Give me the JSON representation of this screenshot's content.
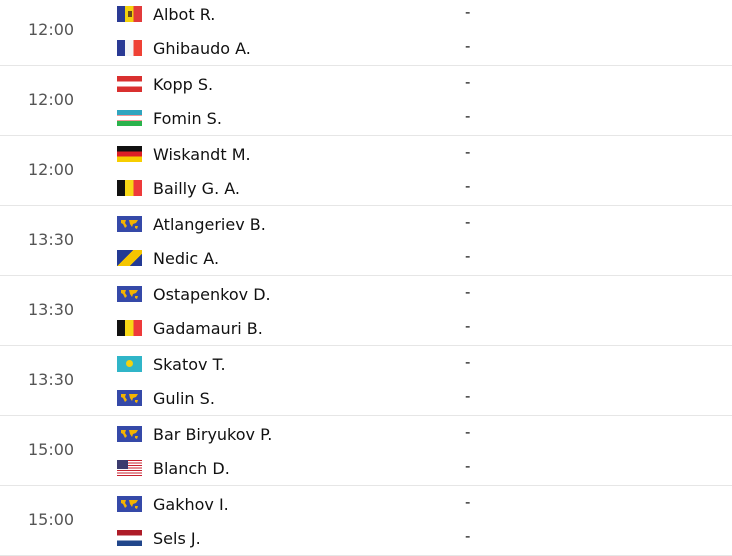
{
  "matches": [
    {
      "time": "12:00",
      "players": [
        {
          "name": "Albot R.",
          "flag": "md",
          "score": "-"
        },
        {
          "name": "Ghibaudo A.",
          "flag": "fr",
          "score": "-"
        }
      ]
    },
    {
      "time": "12:00",
      "players": [
        {
          "name": "Kopp S.",
          "flag": "at",
          "score": "-"
        },
        {
          "name": "Fomin S.",
          "flag": "uz",
          "score": "-"
        }
      ]
    },
    {
      "time": "12:00",
      "players": [
        {
          "name": "Wiskandt M.",
          "flag": "de",
          "score": "-"
        },
        {
          "name": "Bailly G. A.",
          "flag": "be",
          "score": "-"
        }
      ]
    },
    {
      "time": "13:30",
      "players": [
        {
          "name": "Atlangeriev B.",
          "flag": "world",
          "score": "-"
        },
        {
          "name": "Nedic A.",
          "flag": "ba",
          "score": "-"
        }
      ]
    },
    {
      "time": "13:30",
      "players": [
        {
          "name": "Ostapenkov D.",
          "flag": "world",
          "score": "-"
        },
        {
          "name": "Gadamauri B.",
          "flag": "be",
          "score": "-"
        }
      ]
    },
    {
      "time": "13:30",
      "players": [
        {
          "name": "Skatov T.",
          "flag": "kz",
          "score": "-"
        },
        {
          "name": "Gulin S.",
          "flag": "world",
          "score": "-"
        }
      ]
    },
    {
      "time": "15:00",
      "players": [
        {
          "name": "Bar Biryukov P.",
          "flag": "world",
          "score": "-"
        },
        {
          "name": "Blanch D.",
          "flag": "us",
          "score": "-"
        }
      ]
    },
    {
      "time": "15:00",
      "players": [
        {
          "name": "Gakhov I.",
          "flag": "world",
          "score": "-"
        },
        {
          "name": "Sels J.",
          "flag": "nl",
          "score": "-"
        }
      ]
    }
  ]
}
